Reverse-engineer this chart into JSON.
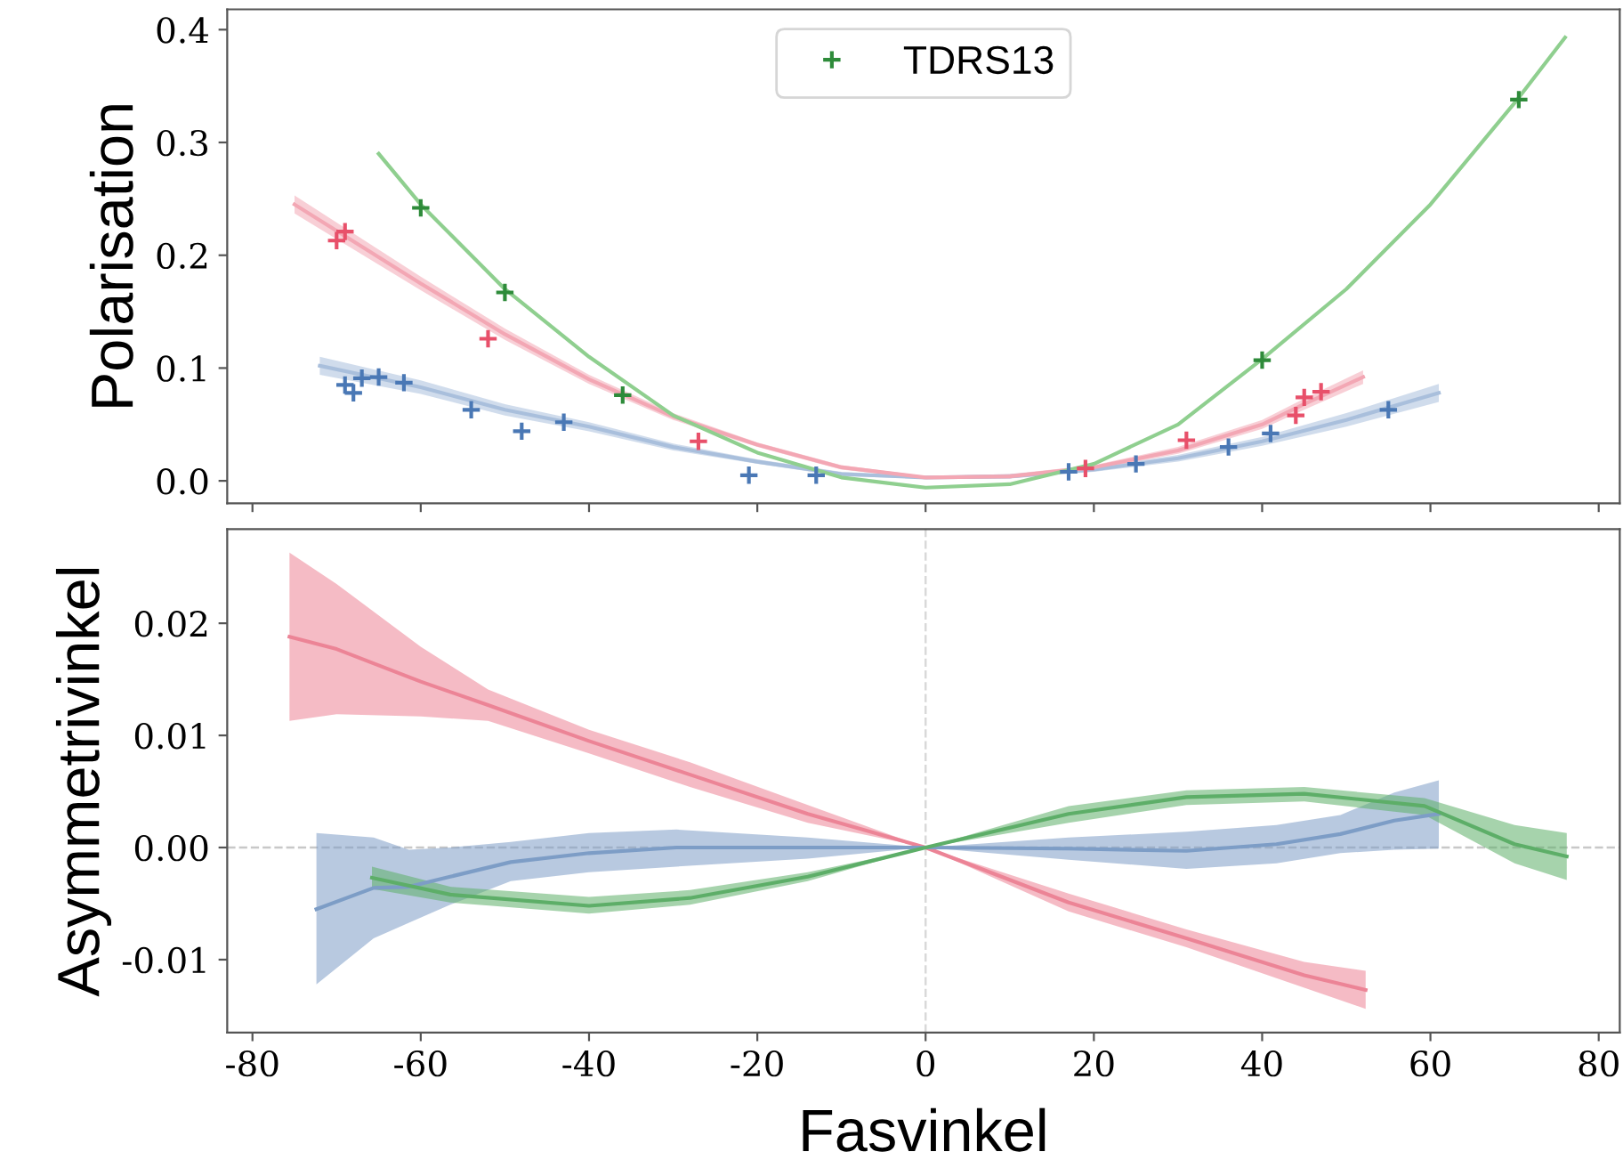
{
  "chart_data": [
    {
      "type": "scatter",
      "ylabel": "Polarisation",
      "xlim": [
        -83,
        82.5
      ],
      "ylim": [
        -0.02,
        0.418
      ],
      "xticks": [
        -80,
        -60,
        -40,
        -20,
        0,
        20,
        40,
        60,
        80
      ],
      "yticks": [
        {
          "value": 0,
          "label": "0.0"
        },
        0.1,
        0.2,
        0.3,
        0.4
      ],
      "tick_labels": "y",
      "legend": "top",
      "grid": false,
      "series": [
        {
          "type": "scatter",
          "marker": "cross",
          "color": "#4a78b5",
          "x": [
            -69,
            -68,
            -67,
            -65,
            -62,
            -54,
            -48,
            -43,
            -21,
            -13,
            17,
            25,
            36,
            41,
            55
          ],
          "values": [
            0.085,
            0.078,
            0.091,
            0.092,
            0.087,
            0.063,
            0.044,
            0.052,
            0.005,
            0.005,
            0.008,
            0.015,
            0.03,
            0.042,
            0.063
          ]
        },
        {
          "type": "scatter",
          "marker": "cross",
          "color": "#e8506a",
          "x": [
            -70,
            -69,
            -52,
            -27,
            19,
            31,
            44,
            45,
            47
          ],
          "values": [
            0.213,
            0.221,
            0.126,
            0.035,
            0.011,
            0.036,
            0.058,
            0.074,
            0.079
          ]
        },
        {
          "type": "scatter",
          "marker": "cross",
          "name": "TDRS13",
          "color": "#2e8b3a",
          "x": [
            -60,
            -50,
            -36,
            40,
            70.5
          ],
          "values": [
            0.242,
            0.167,
            0.076,
            0.107,
            0.338
          ]
        },
        {
          "type": "line",
          "marker": "none",
          "color": "#a9bfdc",
          "x": [
            -72,
            -60,
            -50,
            -40,
            -30,
            -20,
            -10,
            0,
            10,
            20,
            30,
            40,
            50,
            61
          ],
          "values": [
            0.102,
            0.083,
            0.063,
            0.048,
            0.03,
            0.017,
            0.006,
            0.003,
            0.004,
            0.01,
            0.02,
            0.035,
            0.054,
            0.078
          ],
          "lower": [
            0.094,
            0.077,
            0.058,
            0.044,
            0.027,
            0.015,
            0.004,
            0.002,
            0.002,
            0.008,
            0.017,
            0.031,
            0.048,
            0.07
          ],
          "upper": [
            0.11,
            0.089,
            0.068,
            0.052,
            0.033,
            0.019,
            0.008,
            0.004,
            0.006,
            0.012,
            0.023,
            0.039,
            0.06,
            0.086
          ]
        },
        {
          "type": "line",
          "marker": "none",
          "color": "#f3a7b4",
          "x": [
            -75,
            -60,
            -50,
            -40,
            -30,
            -20,
            -10,
            0,
            10,
            20,
            30,
            40,
            45,
            52
          ],
          "values": [
            0.245,
            0.175,
            0.13,
            0.09,
            0.057,
            0.032,
            0.012,
            0.003,
            0.004,
            0.012,
            0.027,
            0.05,
            0.068,
            0.092
          ],
          "lower": [
            0.237,
            0.169,
            0.125,
            0.086,
            0.054,
            0.03,
            0.01,
            0.002,
            0.002,
            0.01,
            0.024,
            0.046,
            0.063,
            0.086
          ],
          "upper": [
            0.253,
            0.181,
            0.135,
            0.094,
            0.06,
            0.034,
            0.014,
            0.004,
            0.006,
            0.014,
            0.03,
            0.054,
            0.073,
            0.098
          ]
        },
        {
          "type": "line",
          "marker": "none",
          "color": "#8fcf8f",
          "x": [
            -65,
            -60,
            -50,
            -40,
            -30,
            -20,
            -10,
            0,
            10,
            20,
            30,
            40,
            50,
            60,
            70,
            76
          ],
          "values": [
            0.29,
            0.245,
            0.17,
            0.11,
            0.058,
            0.025,
            0.003,
            -0.006,
            -0.003,
            0.015,
            0.05,
            0.108,
            0.17,
            0.245,
            0.335,
            0.393
          ]
        }
      ]
    },
    {
      "type": "line",
      "xlabel": "Fasvinkel",
      "ylabel": "Asymmetrivinkel",
      "xlim": [
        -83,
        82.5
      ],
      "ylim": [
        -0.0165,
        0.0284
      ],
      "xticks": [
        -80,
        -60,
        -40,
        -20,
        0,
        20,
        40,
        60,
        80
      ],
      "yticks": [
        -0.01,
        {
          "value": 0,
          "label": "0.00"
        },
        0.01,
        0.02
      ],
      "grid": false,
      "ref_lines": [
        {
          "axis": "y",
          "value": 0,
          "color": "#c8c8c8",
          "line_style": "dashed"
        },
        {
          "axis": "x",
          "value": 0,
          "color": "#d9d9d9",
          "line_style": "dashed"
        }
      ],
      "series": [
        {
          "color": "#ec8496",
          "x": [
            -75.6,
            -70,
            -60,
            -52,
            -40,
            -28,
            -14,
            0,
            17,
            31,
            45,
            52.3
          ],
          "values": [
            0.0188,
            0.0177,
            0.0148,
            0.0127,
            0.0095,
            0.0065,
            0.003,
            0,
            -0.0049,
            -0.0081,
            -0.0114,
            -0.0127
          ],
          "lower": [
            0.0113,
            0.0119,
            0.0117,
            0.0113,
            0.0084,
            0.0054,
            0.0022,
            0,
            -0.0057,
            -0.0089,
            -0.0125,
            -0.0144
          ],
          "upper": [
            0.0263,
            0.0235,
            0.0179,
            0.0141,
            0.0105,
            0.0076,
            0.0038,
            0,
            -0.0041,
            -0.0073,
            -0.0102,
            -0.011
          ]
        },
        {
          "color": "#7d9dc6",
          "x": [
            -72.4,
            -65.6,
            -61.4,
            -56.5,
            -49.3,
            -40,
            -29.6,
            -14,
            0,
            17,
            31,
            41.7,
            49.3,
            55.7,
            61
          ],
          "values": [
            -0.0055,
            -0.0036,
            -0.0035,
            -0.0026,
            -0.0013,
            -0.0005,
            0,
            0,
            0,
            -0.0001,
            -0.0003,
            0.0003,
            0.0012,
            0.0024,
            0.003
          ],
          "lower": [
            -0.0122,
            -0.0081,
            -0.0067,
            -0.0051,
            -0.003,
            -0.0022,
            -0.0017,
            -0.001,
            0,
            -0.0011,
            -0.0019,
            -0.0014,
            -0.0005,
            -0.0002,
            -0.0001
          ],
          "upper": [
            0.0013,
            0.0009,
            -0.0002,
            0,
            0.0005,
            0.0013,
            0.0016,
            0.0009,
            0,
            0.0009,
            0.0014,
            0.002,
            0.0029,
            0.0049,
            0.006
          ]
        },
        {
          "color": "#5dae68",
          "x": [
            -65.8,
            -56.5,
            -40,
            -28,
            -14,
            0,
            17,
            31,
            45,
            59.3,
            70,
            76.2
          ],
          "values": [
            -0.0027,
            -0.0042,
            -0.0052,
            -0.0045,
            -0.0026,
            0,
            0.003,
            0.0045,
            0.0048,
            0.0037,
            0.0003,
            -0.0008
          ],
          "lower": [
            -0.0037,
            -0.0049,
            -0.0059,
            -0.0051,
            -0.003,
            0,
            0.0022,
            0.0038,
            0.0041,
            0.0029,
            -0.0014,
            -0.0029
          ],
          "upper": [
            -0.0017,
            -0.0035,
            -0.0044,
            -0.0038,
            -0.0022,
            0,
            0.0037,
            0.0051,
            0.0054,
            0.0044,
            0.002,
            0.0013
          ]
        }
      ]
    }
  ]
}
